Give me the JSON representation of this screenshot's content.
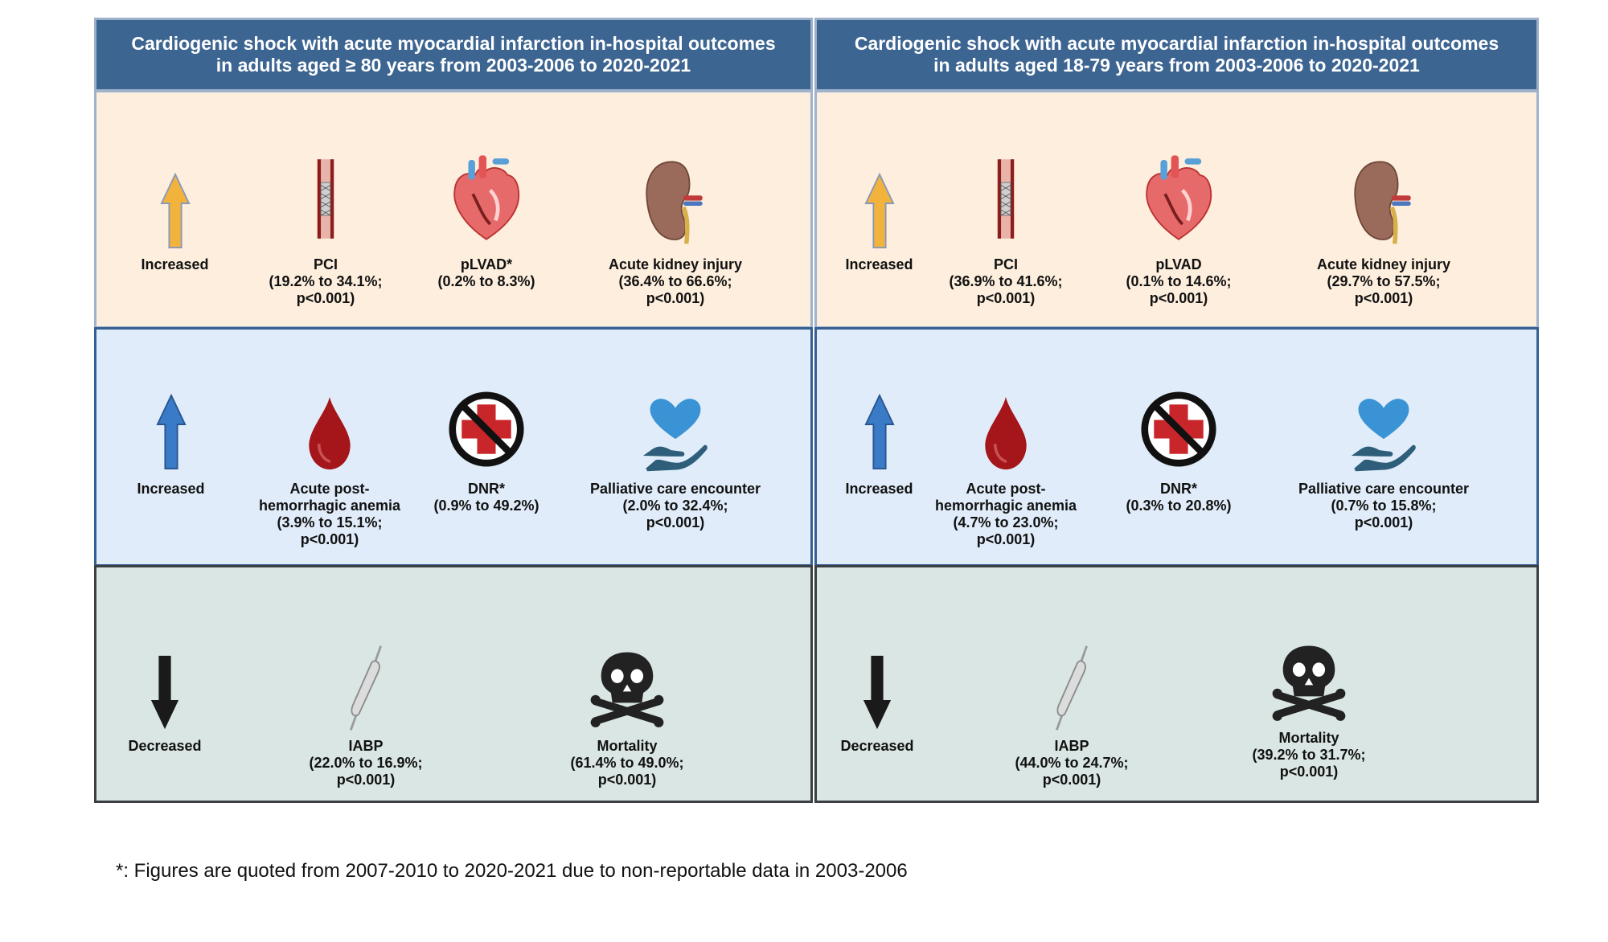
{
  "left": {
    "title": "Cardiogenic shock with acute myocardial infarction in-hospital outcomes\nin adults aged ≥ 80 years from 2003-2006 to 2020-2021",
    "row1": {
      "direction": "Increased",
      "items": [
        {
          "label": "PCI\n(19.2% to 34.1%;\np<0.001)"
        },
        {
          "label": "pLVAD*\n(0.2% to 8.3%)"
        },
        {
          "label": "Acute kidney injury\n(36.4% to 66.6%;\np<0.001)"
        }
      ]
    },
    "row2": {
      "direction": "Increased",
      "items": [
        {
          "label": "Acute post-\nhemorrhagic anemia\n(3.9% to 15.1%;\np<0.001)"
        },
        {
          "label": "DNR*\n(0.9% to 49.2%)"
        },
        {
          "label": "Palliative care encounter\n(2.0% to 32.4%;\np<0.001)"
        }
      ]
    },
    "row3": {
      "direction": "Decreased",
      "items": [
        {
          "label": "IABP\n(22.0% to 16.9%;\np<0.001)"
        },
        {
          "label": "Mortality\n(61.4% to 49.0%;\np<0.001)"
        }
      ]
    }
  },
  "right": {
    "title": "Cardiogenic shock with acute myocardial infarction in-hospital outcomes\nin adults aged 18-79 years from 2003-2006 to 2020-2021",
    "row1": {
      "direction": "Increased",
      "items": [
        {
          "label": "PCI\n(36.9% to 41.6%;\np<0.001)"
        },
        {
          "label": "pLVAD\n(0.1% to 14.6%;\np<0.001)"
        },
        {
          "label": "Acute kidney injury\n(29.7% to 57.5%;\np<0.001)"
        }
      ]
    },
    "row2": {
      "direction": "Increased",
      "items": [
        {
          "label": "Acute post-\nhemorrhagic anemia\n(4.7% to 23.0%;\np<0.001)"
        },
        {
          "label": "DNR*\n(0.3% to 20.8%)"
        },
        {
          "label": "Palliative care encounter\n(0.7% to 15.8%;\np<0.001)"
        }
      ]
    },
    "row3": {
      "direction": "Decreased",
      "items": [
        {
          "label": "IABP\n(44.0% to 24.7%;\np<0.001)"
        },
        {
          "label": "Mortality\n(39.2% to 31.7%;\np<0.001)"
        }
      ]
    }
  },
  "footnote": "*: Figures are quoted from 2007-2010 to 2020-2021 due to non-reportable data in 2003-2006",
  "icons": [
    "arrow-up-icon",
    "stent-icon",
    "heart-icon",
    "kidney-icon",
    "blood-drop-icon",
    "no-medical-icon",
    "hand-heart-icon",
    "arrow-down-icon",
    "balloon-catheter-icon",
    "skull-crossbones-icon"
  ],
  "colors": {
    "header": "#3d6592",
    "row_a": "#fdeedd",
    "row_b": "#e0ecf9",
    "row_c": "#d9e6e3",
    "arrow_orange": "#f2b33d",
    "arrow_blue": "#3a7bc8",
    "arrow_black": "#1a1a1a"
  }
}
